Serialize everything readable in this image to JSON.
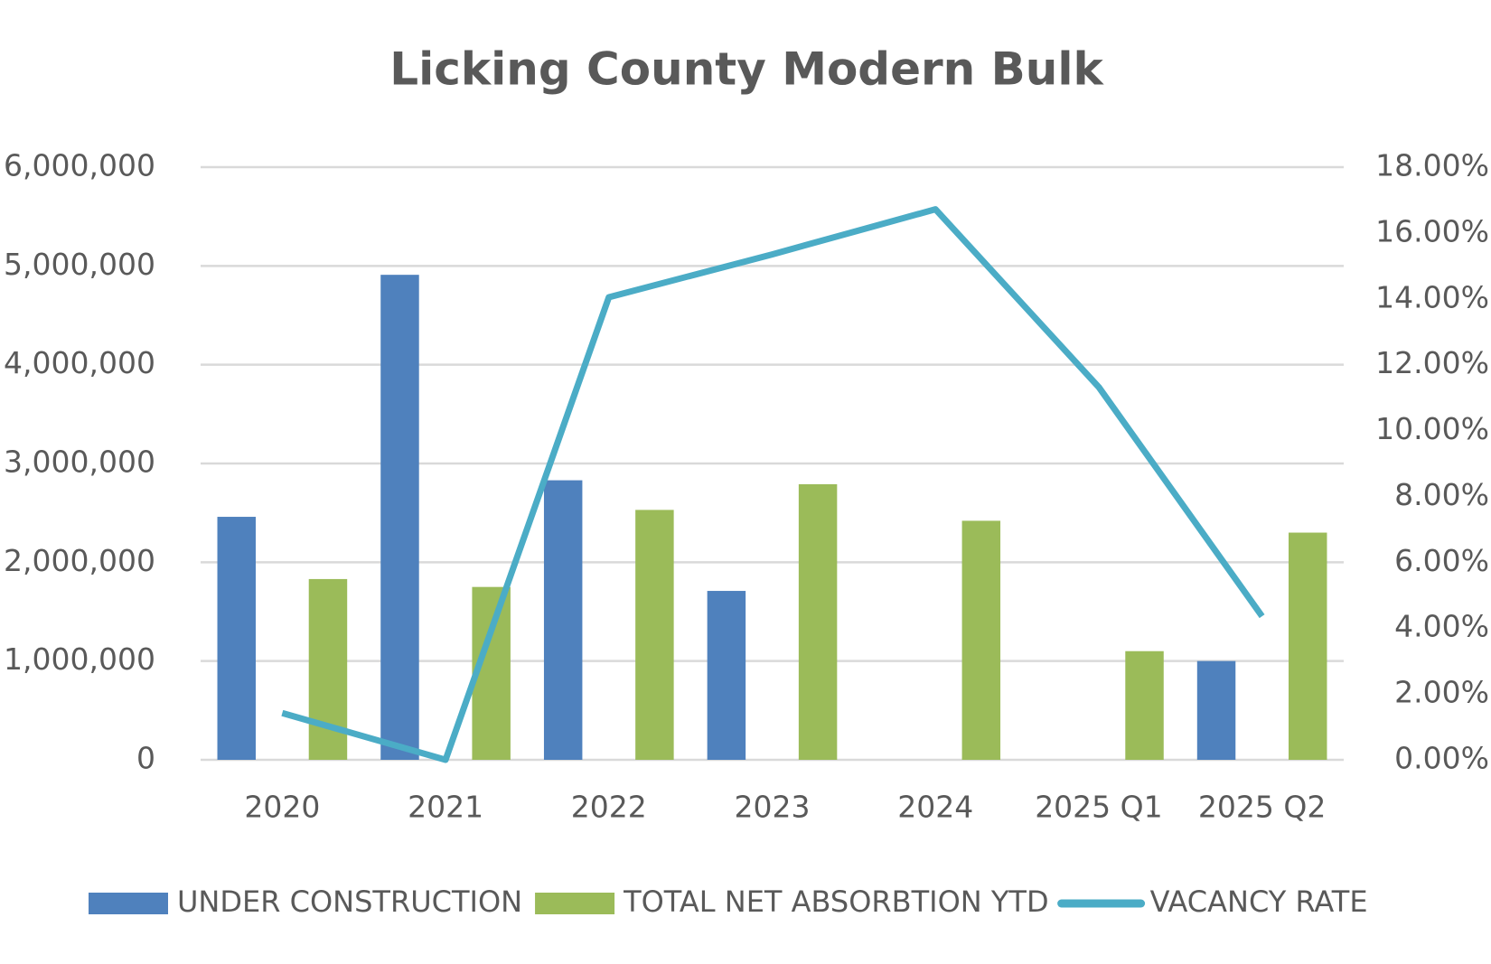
{
  "chart_data": {
    "type": "bar",
    "title": "Licking County Modern Bulk",
    "categories": [
      "2020",
      "2021",
      "2022",
      "2023",
      "2024",
      "2025 Q1",
      "2025 Q2"
    ],
    "series": [
      {
        "name": "UNDER CONSTRUCTION",
        "type": "bar",
        "color": "#4f81bd",
        "values": [
          2460000,
          4910000,
          2830000,
          1710000,
          null,
          null,
          1000000
        ]
      },
      {
        "name": "TOTAL NET ABSORBTION YTD",
        "type": "bar",
        "color": "#9bbb59",
        "values": [
          1830000,
          1750000,
          2530000,
          2790000,
          2420000,
          1100000,
          2300000
        ]
      },
      {
        "name": "VACANCY RATE",
        "type": "line",
        "axis": "y2",
        "color": "#4bacc6",
        "values": [
          1.42,
          0,
          14.05,
          15.35,
          16.72,
          11.32,
          4.36
        ]
      }
    ],
    "ylim": [
      0,
      6000000
    ],
    "yticks": [
      0,
      {
        "value": 1000000,
        "label": "1,000,000"
      },
      {
        "value": 2000000,
        "label": "2,000,000"
      },
      {
        "value": 3000000,
        "label": "3,000,000"
      },
      {
        "value": 4000000,
        "label": "4,000,000"
      },
      {
        "value": 5000000,
        "label": "5,000,000"
      },
      {
        "value": 6000000,
        "label": "6,000,000"
      }
    ],
    "y2lim": [
      0,
      18
    ],
    "y2ticks": [
      {
        "value": 0,
        "label": "0.00%"
      },
      {
        "value": 2,
        "label": "2.00%"
      },
      {
        "value": 4,
        "label": "4.00%"
      },
      {
        "value": 6,
        "label": "6.00%"
      },
      {
        "value": 8,
        "label": "8.00%"
      },
      {
        "value": 10,
        "label": "10.00%"
      },
      {
        "value": 12,
        "label": "12.00%"
      },
      {
        "value": 14,
        "label": "14.00%"
      },
      {
        "value": 16,
        "label": "16.00%"
      },
      {
        "value": 18,
        "label": "18.00%"
      }
    ],
    "grid": true,
    "legend": "bottom"
  }
}
